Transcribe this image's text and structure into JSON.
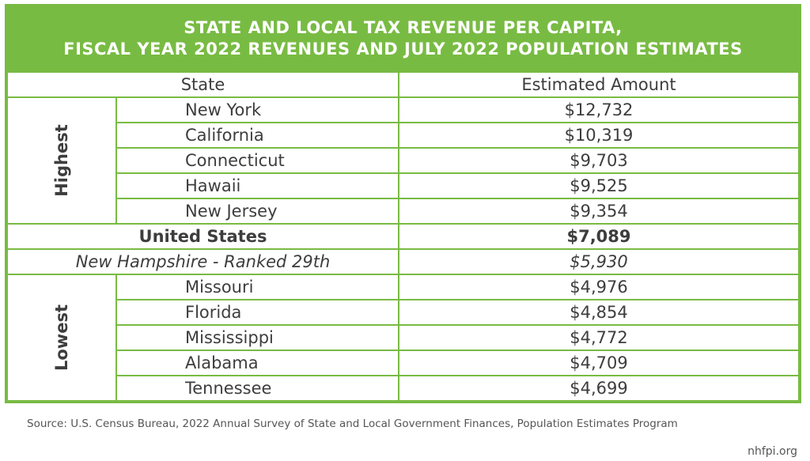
{
  "title": {
    "line1": "STATE AND LOCAL TAX REVENUE PER CAPITA,",
    "line2": "FISCAL YEAR 2022 REVENUES AND JULY 2022 POPULATION ESTIMATES"
  },
  "headers": {
    "state": "State",
    "amount": "Estimated Amount"
  },
  "highest": {
    "label": "Highest",
    "rows": [
      {
        "state": "New York",
        "amount": "$12,732"
      },
      {
        "state": "California",
        "amount": "$10,319"
      },
      {
        "state": "Connecticut",
        "amount": "$9,703"
      },
      {
        "state": "Hawaii",
        "amount": "$9,525"
      },
      {
        "state": "New Jersey",
        "amount": "$9,354"
      }
    ]
  },
  "us": {
    "state": "United States",
    "amount": "$7,089"
  },
  "nh": {
    "state": "New Hampshire - Ranked 29th",
    "amount": "$5,930"
  },
  "lowest": {
    "label": "Lowest",
    "rows": [
      {
        "state": "Missouri",
        "amount": "$4,976"
      },
      {
        "state": "Florida",
        "amount": "$4,854"
      },
      {
        "state": "Mississippi",
        "amount": "$4,772"
      },
      {
        "state": "Alabama",
        "amount": "$4,709"
      },
      {
        "state": "Tennessee",
        "amount": "$4,699"
      }
    ]
  },
  "source": "Source: U.S. Census Bureau, 2022 Annual Survey of State and Local Government Finances, Population Estimates Program",
  "site": "nhfpi.org",
  "colors": {
    "accent": "#78bb43"
  }
}
